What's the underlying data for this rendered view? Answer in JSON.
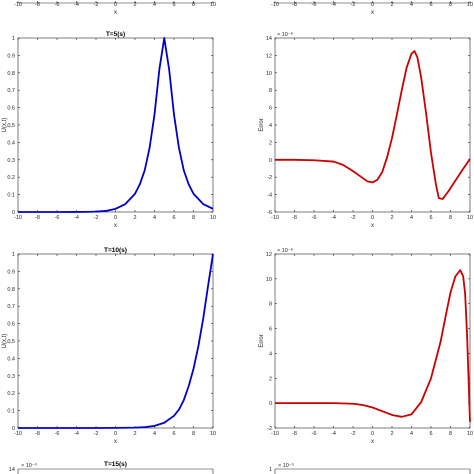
{
  "chart_data": [
    {
      "id": "top-left-partial",
      "type": "line",
      "xlabel": "x",
      "xticks": [
        -10,
        -8,
        -6,
        -4,
        -2,
        0,
        2,
        4,
        6,
        8,
        10
      ],
      "xlim": [
        -10,
        10
      ]
    },
    {
      "id": "top-right-partial",
      "type": "line",
      "xlabel": "x",
      "xticks": [
        -10,
        -8,
        -6,
        -4,
        -2,
        0,
        2,
        4,
        6,
        8,
        10
      ],
      "xlim": [
        -10,
        10
      ]
    },
    {
      "id": "u-t5",
      "type": "line",
      "title": "T=5(s)",
      "xlabel": "x",
      "ylabel": "U(x,t)",
      "xlim": [
        -10,
        10
      ],
      "ylim": [
        0,
        1
      ],
      "xticks": [
        -10,
        -8,
        -6,
        -4,
        -2,
        0,
        2,
        4,
        6,
        8,
        10
      ],
      "yticks": [
        0,
        0.1,
        0.2,
        0.3,
        0.4,
        0.5,
        0.6,
        0.7,
        0.8,
        0.9,
        1
      ],
      "ytick_labels": [
        "0",
        "0.1",
        "0.2",
        "0.3",
        "0.4",
        "0.5",
        "0.6",
        "0.7",
        "0.8",
        "0.9",
        "1"
      ],
      "color": "#0000cc",
      "series": [
        {
          "x": [
            -10,
            -8,
            -6,
            -4,
            -3,
            -2,
            -1,
            0,
            1,
            2,
            2.5,
            3,
            3.5,
            4,
            4.5,
            5,
            5.5,
            6,
            6.5,
            7,
            7.5,
            8,
            9,
            10
          ],
          "y": [
            0,
            0,
            0,
            0.0003,
            0.0008,
            0.002,
            0.006,
            0.018,
            0.045,
            0.105,
            0.16,
            0.24,
            0.37,
            0.56,
            0.82,
            1.0,
            0.82,
            0.56,
            0.37,
            0.24,
            0.16,
            0.105,
            0.045,
            0.018
          ]
        }
      ]
    },
    {
      "id": "err-t5",
      "type": "line",
      "xlabel": "x",
      "ylabel": "Error",
      "exponent": "× 10⁻⁶",
      "xlim": [
        -10,
        10
      ],
      "ylim": [
        -6,
        14
      ],
      "xticks": [
        -10,
        -8,
        -6,
        -4,
        -2,
        0,
        2,
        4,
        6,
        8,
        10
      ],
      "yticks": [
        -6,
        -4,
        -2,
        0,
        2,
        4,
        6,
        8,
        10,
        12,
        14
      ],
      "ytick_labels": [
        "-6",
        "-4",
        "-2",
        "0",
        "2",
        "4",
        "6",
        "8",
        "10",
        "12",
        "14"
      ],
      "color": "#cc0000",
      "series": [
        {
          "x": [
            -10,
            -8,
            -6,
            -4,
            -3,
            -2,
            -1,
            -0.5,
            0,
            0.5,
            1,
            1.5,
            2,
            2.5,
            3,
            3.5,
            4,
            4.3,
            4.6,
            5,
            5.5,
            6,
            6.5,
            6.8,
            7.2,
            7.8,
            8.5,
            9.2,
            10
          ],
          "y": [
            0,
            0,
            -0.05,
            -0.2,
            -0.6,
            -1.3,
            -2.1,
            -2.5,
            -2.6,
            -2.3,
            -1.4,
            0.3,
            2.5,
            5.2,
            8.0,
            10.6,
            12.2,
            12.5,
            11.8,
            9.4,
            5.3,
            0.8,
            -2.8,
            -4.4,
            -4.5,
            -3.6,
            -2.4,
            -1.2,
            0.1
          ]
        }
      ]
    },
    {
      "id": "u-t10",
      "type": "line",
      "title": "T=10(s)",
      "xlabel": "x",
      "ylabel": "U(x,t)",
      "xlim": [
        -10,
        10
      ],
      "ylim": [
        0,
        1
      ],
      "xticks": [
        -10,
        -8,
        -6,
        -4,
        -2,
        0,
        2,
        4,
        6,
        8,
        10
      ],
      "yticks": [
        0,
        0.1,
        0.2,
        0.3,
        0.4,
        0.5,
        0.6,
        0.7,
        0.8,
        0.9,
        1
      ],
      "ytick_labels": [
        "0",
        "0.1",
        "0.2",
        "0.3",
        "0.4",
        "0.5",
        "0.6",
        "0.7",
        "0.8",
        "0.9",
        "1"
      ],
      "color": "#0000cc",
      "series": [
        {
          "x": [
            -10,
            -6,
            -4,
            -2,
            0,
            2,
            3,
            4,
            5,
            6,
            6.5,
            7,
            7.5,
            8,
            8.5,
            9,
            9.5,
            10
          ],
          "y": [
            0,
            0,
            0,
            0,
            0.0005,
            0.002,
            0.005,
            0.012,
            0.03,
            0.07,
            0.105,
            0.16,
            0.24,
            0.34,
            0.47,
            0.63,
            0.82,
            1.0
          ]
        }
      ]
    },
    {
      "id": "err-t10",
      "type": "line",
      "xlabel": "x",
      "ylabel": "Error",
      "exponent": "× 10⁻⁶",
      "xlim": [
        -10,
        10
      ],
      "ylim": [
        -2,
        12
      ],
      "xticks": [
        -10,
        -8,
        -6,
        -4,
        -2,
        0,
        2,
        4,
        6,
        8,
        10
      ],
      "yticks": [
        -2,
        0,
        2,
        4,
        6,
        8,
        10,
        12
      ],
      "ytick_labels": [
        "-2",
        "0",
        "2",
        "4",
        "6",
        "8",
        "10",
        "12"
      ],
      "color": "#cc0000",
      "series": [
        {
          "x": [
            -10,
            -6,
            -4,
            -2,
            -1,
            0,
            1,
            2,
            3,
            4,
            5,
            6,
            7,
            7.5,
            8,
            8.5,
            9,
            9.3,
            9.5,
            9.7,
            9.85,
            10
          ],
          "y": [
            0,
            0,
            0,
            -0.05,
            -0.15,
            -0.35,
            -0.65,
            -0.95,
            -1.1,
            -0.9,
            0.1,
            2.0,
            5.0,
            7.0,
            8.9,
            10.2,
            10.7,
            10.2,
            8.8,
            5.5,
            2.0,
            -1.5
          ]
        }
      ]
    },
    {
      "id": "bottom-left-partial",
      "type": "line",
      "title": "T=15(s)",
      "exponent": "× 10⁻³",
      "ytick_labels": [
        "14"
      ]
    },
    {
      "id": "bottom-right-partial",
      "type": "line",
      "exponent": "× 10⁻⁵",
      "ytick_labels": [
        "1"
      ]
    }
  ]
}
